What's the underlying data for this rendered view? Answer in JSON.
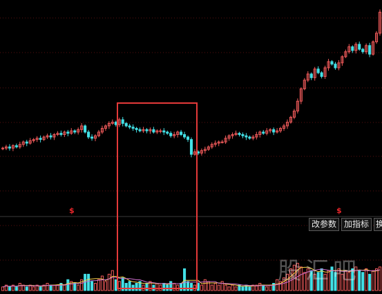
{
  "colors": {
    "background": "#000000",
    "grid": "#5a1010",
    "up": "#f05a5a",
    "down": "#43e0e6",
    "signal": "#e8262a",
    "highlight": "#e53a3a",
    "ma1": "#ffd24a",
    "ma2": "#d070d0"
  },
  "signals": [
    {
      "label": "$"
    },
    {
      "label": "$"
    }
  ],
  "toolbar": {
    "change_params_label": "改参数",
    "add_indicator_label": "加指标",
    "third_label": "换"
  },
  "watermark": "股汇吧",
  "chart_data": {
    "type": "candlestick",
    "panels": [
      "price",
      "volume"
    ],
    "grid": true,
    "highlight_box": "price dip and volume region",
    "close_series": [
      10.0,
      10.1,
      10.0,
      10.2,
      10.1,
      10.3,
      10.5,
      10.4,
      10.6,
      10.7,
      10.8,
      10.7,
      10.9,
      11.0,
      10.9,
      11.1,
      11.2,
      11.1,
      11.3,
      11.2,
      11.4,
      11.3,
      11.5,
      11.8,
      11.3,
      10.9,
      10.8,
      11.0,
      11.3,
      11.6,
      11.8,
      12.0,
      12.1,
      11.9,
      12.3,
      12.0,
      11.8,
      11.7,
      11.6,
      11.5,
      11.4,
      11.5,
      11.4,
      11.5,
      11.3,
      11.4,
      11.4,
      11.3,
      11.2,
      11.0,
      11.1,
      11.3,
      11.1,
      10.9,
      10.7,
      9.5,
      9.7,
      9.6,
      9.8,
      9.9,
      10.1,
      10.3,
      10.4,
      10.5,
      10.5,
      10.8,
      11.0,
      11.1,
      11.2,
      11.1,
      11.0,
      10.9,
      10.8,
      10.9,
      11.1,
      11.3,
      11.2,
      11.4,
      11.5,
      11.3,
      11.4,
      11.6,
      11.8,
      12.1,
      12.5,
      13.0,
      13.8,
      14.8,
      15.5,
      16.0,
      15.7,
      16.4,
      16.1,
      15.8,
      16.5,
      17.0,
      16.8,
      16.5,
      16.9,
      17.4,
      17.8,
      18.2,
      17.9,
      18.4,
      18.0,
      17.8,
      18.3,
      17.6,
      18.6,
      19.3,
      21.0
    ],
    "volume_series": [
      2,
      3,
      2,
      3,
      2,
      4,
      3,
      2,
      3,
      2,
      3,
      2,
      3,
      4,
      3,
      3,
      3,
      4,
      3,
      6,
      5,
      4,
      3,
      6,
      9,
      9,
      5,
      4,
      6,
      8,
      5,
      9,
      11,
      6,
      5,
      7,
      4,
      5,
      3,
      4,
      5,
      3,
      4,
      5,
      3,
      4,
      3,
      4,
      3,
      5,
      4,
      3,
      4,
      12,
      5,
      4,
      3,
      4,
      3,
      6,
      5,
      3,
      4,
      3,
      5,
      3,
      2,
      3,
      2,
      3,
      2,
      3,
      2,
      3,
      3,
      4,
      3,
      2,
      3,
      4,
      6,
      5,
      7,
      9,
      12,
      14,
      15,
      13,
      10,
      12,
      11,
      9,
      10,
      12,
      9,
      11,
      13,
      10,
      12,
      9,
      11,
      10,
      12,
      13,
      11,
      10,
      12,
      9,
      11,
      12,
      13
    ]
  }
}
